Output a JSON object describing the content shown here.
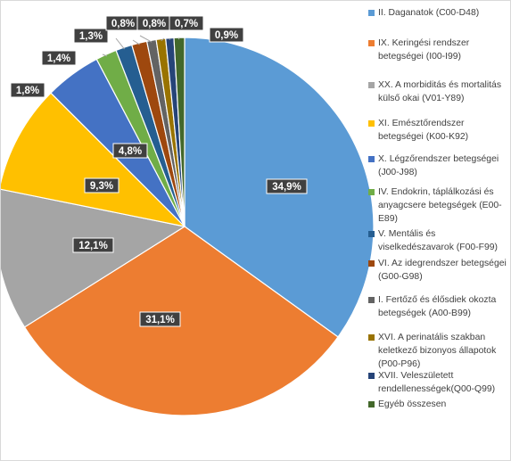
{
  "chart_data": {
    "type": "pie",
    "title": "",
    "legend_position": "right",
    "slices": [
      {
        "name": "II. Daganatok (C00-D48)",
        "value": 34.9,
        "label": "34,9%",
        "color": "#5b9bd5"
      },
      {
        "name": "IX. Keringési rendszer betegségei (I00-I99)",
        "value": 31.1,
        "label": "31,1%",
        "color": "#ed7d31"
      },
      {
        "name": "XX. A morbiditás és mortalitás külső okai (V01-Y89)",
        "value": 12.1,
        "label": "12,1%",
        "color": "#a5a5a5"
      },
      {
        "name": "XI. Emésztőrendszer betegségei (K00-K92)",
        "value": 9.3,
        "label": "9,3%",
        "color": "#ffc000"
      },
      {
        "name": "X. Légzőrendszer betegségei (J00-J98)",
        "value": 4.8,
        "label": "4,8%",
        "color": "#4472c4"
      },
      {
        "name": "IV. Endokrin, táplálkozási és anyagcsere betegségek (E00-E89)",
        "value": 1.8,
        "label": "1,8%",
        "color": "#70ad47"
      },
      {
        "name": "V. Mentális és viselkedészavarok (F00-F99)",
        "value": 1.4,
        "label": "1,4%",
        "color": "#255e91"
      },
      {
        "name": "VI. Az idegrendszer betegségei (G00-G98)",
        "value": 1.3,
        "label": "1,3%",
        "color": "#9e480e"
      },
      {
        "name": "I. Fertőző és élősdiek okozta betegségek (A00-B99)",
        "value": 0.8,
        "label": "0,8%",
        "color": "#636363"
      },
      {
        "name": "XVI. A perinatális szakban keletkező bizonyos állapotok (P00-P96)",
        "value": 0.8,
        "label": "0,8%",
        "color": "#997300"
      },
      {
        "name": "XVII. Veleszületett rendellenességek(Q00-Q99)",
        "value": 0.7,
        "label": "0,7%",
        "color": "#264478"
      },
      {
        "name": "Egyéb összesen",
        "value": 0.9,
        "label": "0,9%",
        "color": "#43682b"
      }
    ]
  }
}
